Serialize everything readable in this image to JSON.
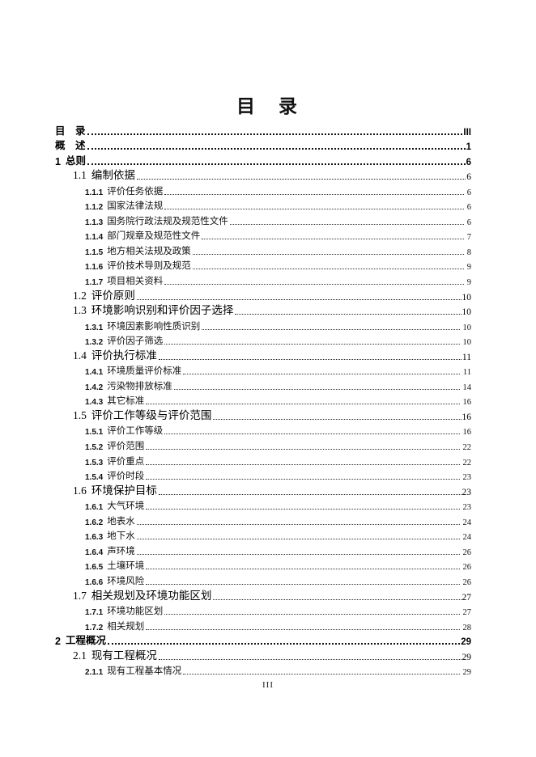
{
  "page": {
    "title": "目　录",
    "footer_page_number": "III"
  },
  "toc": {
    "entries": [
      {
        "level": 1,
        "num": "",
        "label": "目　录",
        "page": "III"
      },
      {
        "level": 1,
        "num": "",
        "label": "概　述",
        "page": "1"
      },
      {
        "level": 1,
        "num": "1",
        "label": "总则",
        "page": "6"
      },
      {
        "level": 2,
        "num": "1.1",
        "label": "编制依据",
        "page": "6"
      },
      {
        "level": 3,
        "num": "1.1.1",
        "label": "评价任务依据",
        "page": "6"
      },
      {
        "level": 3,
        "num": "1.1.2",
        "label": "国家法律法规",
        "page": "6"
      },
      {
        "level": 3,
        "num": "1.1.3",
        "label": "国务院行政法规及规范性文件",
        "page": "6"
      },
      {
        "level": 3,
        "num": "1.1.4",
        "label": "部门规章及规范性文件",
        "page": "7"
      },
      {
        "level": 3,
        "num": "1.1.5",
        "label": "地方相关法规及政策",
        "page": "8"
      },
      {
        "level": 3,
        "num": "1.1.6",
        "label": "评价技术导则及规范",
        "page": "9"
      },
      {
        "level": 3,
        "num": "1.1.7",
        "label": "项目相关资料",
        "page": "9"
      },
      {
        "level": 2,
        "num": "1.2",
        "label": "评价原则",
        "page": "10"
      },
      {
        "level": 2,
        "num": "1.3",
        "label": "环境影响识别和评价因子选择",
        "page": "10"
      },
      {
        "level": 3,
        "num": "1.3.1",
        "label": "环境因素影响性质识别",
        "page": "10"
      },
      {
        "level": 3,
        "num": "1.3.2",
        "label": "评价因子筛选",
        "page": "10"
      },
      {
        "level": 2,
        "num": "1.4",
        "label": "评价执行标准",
        "page": "11"
      },
      {
        "level": 3,
        "num": "1.4.1",
        "label": "环境质量评价标准",
        "page": "11"
      },
      {
        "level": 3,
        "num": "1.4.2",
        "label": "污染物排放标准",
        "page": "14"
      },
      {
        "level": 3,
        "num": "1.4.3",
        "label": "其它标准",
        "page": "16"
      },
      {
        "level": 2,
        "num": "1.5",
        "label": "评价工作等级与评价范围",
        "page": "16"
      },
      {
        "level": 3,
        "num": "1.5.1",
        "label": "评价工作等级",
        "page": "16"
      },
      {
        "level": 3,
        "num": "1.5.2",
        "label": "评价范围",
        "page": "22"
      },
      {
        "level": 3,
        "num": "1.5.3",
        "label": "评价重点",
        "page": "22"
      },
      {
        "level": 3,
        "num": "1.5.4",
        "label": "评价时段",
        "page": "23"
      },
      {
        "level": 2,
        "num": "1.6",
        "label": "环境保护目标",
        "page": "23"
      },
      {
        "level": 3,
        "num": "1.6.1",
        "label": "大气环境",
        "page": "23"
      },
      {
        "level": 3,
        "num": "1.6.2",
        "label": "地表水",
        "page": "24"
      },
      {
        "level": 3,
        "num": "1.6.3",
        "label": "地下水",
        "page": "24"
      },
      {
        "level": 3,
        "num": "1.6.4",
        "label": "声环境",
        "page": "26"
      },
      {
        "level": 3,
        "num": "1.6.5",
        "label": "土壤环境",
        "page": "26"
      },
      {
        "level": 3,
        "num": "1.6.6",
        "label": "环境风险",
        "page": "26"
      },
      {
        "level": 2,
        "num": "1.7",
        "label": "相关规划及环境功能区划",
        "page": "27"
      },
      {
        "level": 3,
        "num": "1.7.1",
        "label": "环境功能区划",
        "page": "27"
      },
      {
        "level": 3,
        "num": "1.7.2",
        "label": "相关规划",
        "page": "28"
      },
      {
        "level": 1,
        "num": "2",
        "label": "工程概况",
        "page": "29"
      },
      {
        "level": 2,
        "num": "2.1",
        "label": "现有工程概况",
        "page": "29"
      },
      {
        "level": 3,
        "num": "2.1.1",
        "label": "现有工程基本情况",
        "page": "29"
      }
    ]
  }
}
